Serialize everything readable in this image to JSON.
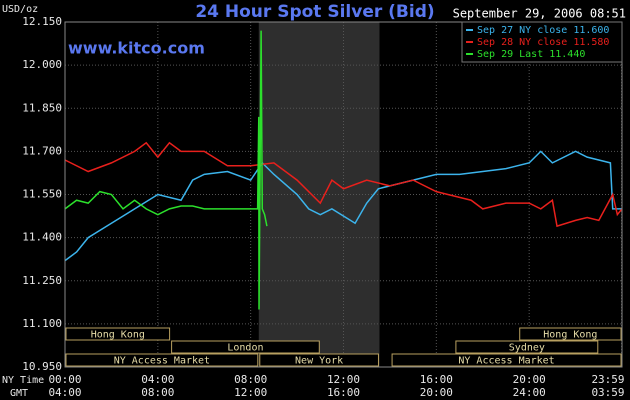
{
  "chart_data": {
    "type": "line",
    "title": "24 Hour Spot Silver (Bid)",
    "timestamp": "September 29, 2006 08:51",
    "watermark": "www.kitco.com",
    "y_label": "USD/oz",
    "x_row_label": "NY Time",
    "x2_row_label": "GMT",
    "xlim": [
      0,
      24
    ],
    "xticks": [
      {
        "value": 0,
        "label": "00:00"
      },
      {
        "value": 4,
        "label": "04:00"
      },
      {
        "value": 8,
        "label": "08:00"
      },
      {
        "value": 12,
        "label": "12:00"
      },
      {
        "value": 16,
        "label": "16:00"
      },
      {
        "value": 20,
        "label": "20:00"
      },
      {
        "value": 23.983,
        "label": "23:59"
      }
    ],
    "x2tick_labels": [
      "04:00",
      "08:00",
      "12:00",
      "16:00",
      "20:00",
      "24:00",
      "03:59"
    ],
    "ylim": [
      10.95,
      12.15
    ],
    "yticks": [
      {
        "value": 10.95,
        "label": "10.950"
      },
      {
        "value": 11.1,
        "label": "11.100"
      },
      {
        "value": 11.25,
        "label": "11.250"
      },
      {
        "value": 11.4,
        "label": "11.400"
      },
      {
        "value": 11.55,
        "label": "11.550"
      },
      {
        "value": 11.7,
        "label": "11.700"
      },
      {
        "value": 11.85,
        "label": "11.850"
      },
      {
        "value": 12,
        "label": "12.000"
      },
      {
        "value": 12.15,
        "label": "12.150"
      }
    ],
    "grid": true,
    "legend": "upper right",
    "series": [
      {
        "name": "Sep 27 NY close 11.600",
        "color": "#3cb4ec",
        "x": [
          0,
          0.5,
          1,
          2,
          3,
          4,
          5,
          5.5,
          6,
          7,
          8,
          8.5,
          9,
          10,
          10.5,
          11,
          11.5,
          12.5,
          13,
          13.5,
          14,
          15,
          16,
          17,
          18,
          19,
          20,
          20.5,
          21,
          22,
          22.5,
          23.5,
          23.6,
          24
        ],
        "values": [
          11.32,
          11.35,
          11.4,
          11.45,
          11.5,
          11.55,
          11.53,
          11.6,
          11.62,
          11.63,
          11.6,
          11.66,
          11.62,
          11.55,
          11.5,
          11.48,
          11.5,
          11.45,
          11.52,
          11.57,
          11.58,
          11.6,
          11.62,
          11.62,
          11.63,
          11.64,
          11.66,
          11.7,
          11.66,
          11.7,
          11.68,
          11.66,
          11.5,
          11.5
        ]
      },
      {
        "name": "Sep 28 NY close 11.580",
        "color": "#e8201c",
        "x": [
          0,
          1,
          2,
          3,
          3.5,
          4,
          4.5,
          5,
          6,
          7,
          8,
          9,
          10,
          11,
          11.5,
          12,
          13,
          14,
          15,
          16,
          17,
          17.5,
          18,
          19,
          20,
          20.5,
          21,
          21.2,
          22,
          22.5,
          23,
          23.6,
          23.8,
          24
        ],
        "values": [
          11.67,
          11.63,
          11.66,
          11.7,
          11.73,
          11.68,
          11.73,
          11.7,
          11.7,
          11.65,
          11.65,
          11.66,
          11.6,
          11.52,
          11.6,
          11.57,
          11.6,
          11.58,
          11.6,
          11.56,
          11.54,
          11.53,
          11.5,
          11.52,
          11.52,
          11.5,
          11.53,
          11.44,
          11.46,
          11.47,
          11.46,
          11.55,
          11.48,
          11.5
        ]
      },
      {
        "name": "Sep 29 Last 11.440",
        "color": "#2ce02c",
        "x": [
          0,
          0.5,
          1,
          1.5,
          2,
          2.5,
          3,
          3.5,
          4,
          4.5,
          5,
          5.5,
          6,
          7,
          8,
          8.3,
          8.35,
          8.36,
          8.45,
          8.5,
          8.6,
          8.7
        ],
        "values": [
          11.5,
          11.53,
          11.52,
          11.56,
          11.55,
          11.5,
          11.53,
          11.5,
          11.48,
          11.5,
          11.51,
          11.51,
          11.5,
          11.5,
          11.5,
          11.5,
          11.82,
          11.15,
          12.12,
          11.5,
          11.48,
          11.44
        ]
      }
    ],
    "sessions": [
      {
        "label": "Hong Kong",
        "row": 0,
        "start": 0,
        "end": 4.55
      },
      {
        "label": "Hong Kong",
        "row": 0,
        "start": 19.55,
        "end": 24
      },
      {
        "label": "London",
        "row": 1,
        "start": 4.55,
        "end": 11
      },
      {
        "label": "Sydney",
        "row": 1,
        "start": 16.8,
        "end": 23
      },
      {
        "label": "NY Access Market",
        "row": 2,
        "start": 0,
        "end": 8.35
      },
      {
        "label": "New York",
        "row": 2,
        "start": 8.35,
        "end": 13.55,
        "shaded": true
      },
      {
        "label": "NY Access Market",
        "row": 2,
        "start": 14.05,
        "end": 24
      }
    ]
  }
}
